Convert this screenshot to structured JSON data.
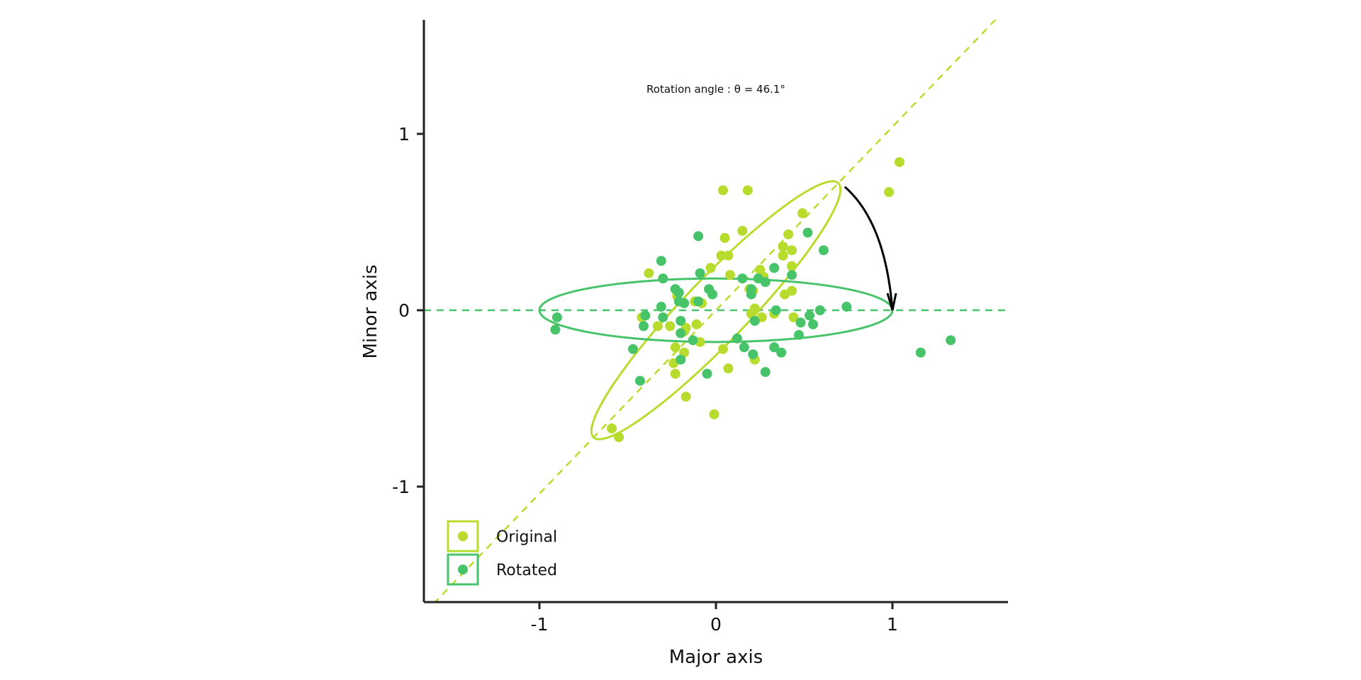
{
  "chart_data": {
    "type": "scatter",
    "title": "",
    "xlabel": "Major axis",
    "ylabel": "Minor axis",
    "xlim": [
      -1.65,
      1.65
    ],
    "ylim": [
      -1.65,
      1.65
    ],
    "x_ticks": [
      -1,
      0,
      1
    ],
    "x_tick_labels": [
      "-1",
      "0",
      "1"
    ],
    "y_ticks": [
      -1,
      0,
      1
    ],
    "y_tick_labels": [
      "-1",
      "0",
      "1"
    ],
    "grid": false,
    "legend_position": "bottom-left",
    "annotation": "Rotation angle : θ = 46.1°",
    "rotation_angle_deg": 46.1,
    "colors": {
      "original": "#b8dc2e",
      "rotated": "#47c46a",
      "arrow": "#000000",
      "axis": "#222222"
    },
    "ellipses": [
      {
        "name": "Original",
        "center": [
          0,
          0
        ],
        "semi_major": 1.0,
        "semi_minor": 0.18,
        "angle_deg": 46.1
      },
      {
        "name": "Rotated",
        "center": [
          0,
          0
        ],
        "semi_major": 1.0,
        "semi_minor": 0.18,
        "angle_deg": 0
      }
    ],
    "reference_lines": [
      {
        "name": "Original",
        "slope": 1.04
      },
      {
        "name": "Rotated",
        "slope": 0
      }
    ],
    "arrow": {
      "from": [
        0.73,
        0.7
      ],
      "to": [
        1.0,
        0.0
      ]
    },
    "series": [
      {
        "name": "Original",
        "points": [
          [
            1.04,
            0.84
          ],
          [
            0.98,
            0.67
          ],
          [
            0.04,
            0.68
          ],
          [
            0.18,
            0.68
          ],
          [
            0.49,
            0.55
          ],
          [
            0.15,
            0.45
          ],
          [
            0.41,
            0.43
          ],
          [
            0.05,
            0.41
          ],
          [
            0.38,
            0.36
          ],
          [
            0.43,
            0.34
          ],
          [
            0.38,
            0.31
          ],
          [
            0.03,
            0.31
          ],
          [
            0.07,
            0.31
          ],
          [
            -0.03,
            0.24
          ],
          [
            0.43,
            0.25
          ],
          [
            0.25,
            0.23
          ],
          [
            -0.38,
            0.21
          ],
          [
            0.08,
            0.2
          ],
          [
            0.27,
            0.19
          ],
          [
            0.19,
            0.12
          ],
          [
            0.21,
            0.11
          ],
          [
            0.43,
            0.11
          ],
          [
            0.39,
            0.09
          ],
          [
            -0.22,
            0.08
          ],
          [
            -0.12,
            0.05
          ],
          [
            -0.08,
            0.04
          ],
          [
            0.22,
            0.01
          ],
          [
            0.2,
            -0.02
          ],
          [
            0.33,
            -0.02
          ],
          [
            0.26,
            -0.04
          ],
          [
            -0.42,
            -0.04
          ],
          [
            0.44,
            -0.04
          ],
          [
            -0.33,
            -0.09
          ],
          [
            -0.26,
            -0.09
          ],
          [
            -0.11,
            -0.08
          ],
          [
            -0.17,
            -0.1
          ],
          [
            -0.18,
            -0.12
          ],
          [
            -0.09,
            -0.18
          ],
          [
            -0.23,
            -0.21
          ],
          [
            0.04,
            -0.22
          ],
          [
            -0.18,
            -0.24
          ],
          [
            0.22,
            -0.28
          ],
          [
            -0.24,
            -0.3
          ],
          [
            0.07,
            -0.33
          ],
          [
            -0.23,
            -0.36
          ],
          [
            -0.17,
            -0.49
          ],
          [
            -0.01,
            -0.59
          ],
          [
            -0.59,
            -0.67
          ],
          [
            -0.55,
            -0.72
          ]
        ]
      },
      {
        "name": "Rotated",
        "points": [
          [
            -0.1,
            0.42
          ],
          [
            -0.31,
            0.28
          ],
          [
            0.52,
            0.44
          ],
          [
            0.61,
            0.34
          ],
          [
            0.33,
            0.24
          ],
          [
            -0.09,
            0.21
          ],
          [
            -0.3,
            0.18
          ],
          [
            0.15,
            0.18
          ],
          [
            0.24,
            0.18
          ],
          [
            0.28,
            0.16
          ],
          [
            0.43,
            0.2
          ],
          [
            -0.23,
            0.12
          ],
          [
            -0.04,
            0.12
          ],
          [
            0.2,
            0.12
          ],
          [
            -0.21,
            0.1
          ],
          [
            -0.02,
            0.09
          ],
          [
            0.2,
            0.09
          ],
          [
            -0.21,
            0.05
          ],
          [
            -0.18,
            0.04
          ],
          [
            -0.1,
            0.05
          ],
          [
            -0.31,
            0.02
          ],
          [
            0.74,
            0.02
          ],
          [
            0.59,
            0.0
          ],
          [
            0.34,
            0.0
          ],
          [
            -0.4,
            -0.03
          ],
          [
            -0.3,
            -0.04
          ],
          [
            0.53,
            -0.03
          ],
          [
            -0.9,
            -0.04
          ],
          [
            0.48,
            -0.07
          ],
          [
            0.22,
            -0.06
          ],
          [
            -0.2,
            -0.06
          ],
          [
            0.55,
            -0.08
          ],
          [
            -0.41,
            -0.09
          ],
          [
            -0.91,
            -0.11
          ],
          [
            -0.2,
            -0.13
          ],
          [
            0.47,
            -0.14
          ],
          [
            0.12,
            -0.16
          ],
          [
            -0.13,
            -0.17
          ],
          [
            0.16,
            -0.21
          ],
          [
            -0.47,
            -0.22
          ],
          [
            0.33,
            -0.21
          ],
          [
            0.37,
            -0.24
          ],
          [
            0.21,
            -0.25
          ],
          [
            -0.2,
            -0.28
          ],
          [
            1.16,
            -0.24
          ],
          [
            1.33,
            -0.17
          ],
          [
            -0.05,
            -0.36
          ],
          [
            0.28,
            -0.35
          ],
          [
            -0.43,
            -0.4
          ]
        ]
      }
    ]
  }
}
